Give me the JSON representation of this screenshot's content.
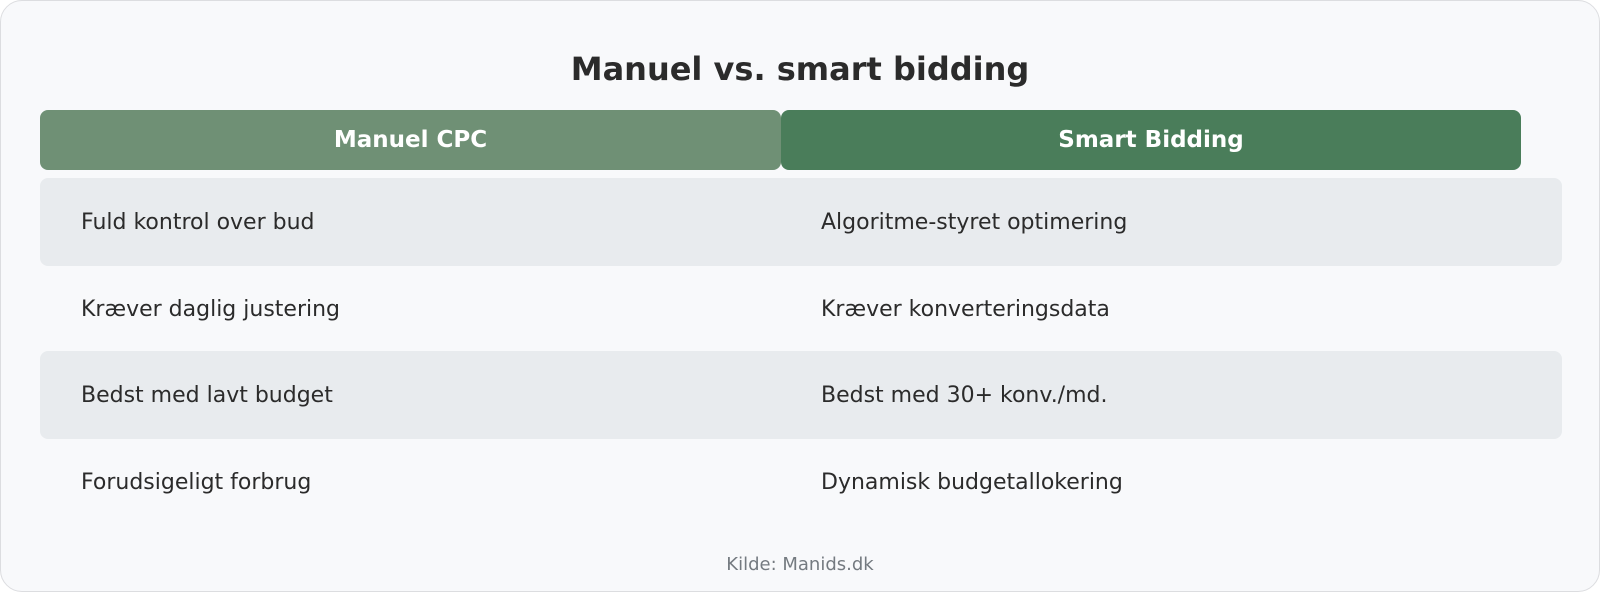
{
  "title": "Manuel vs. smart bidding",
  "columns": {
    "left": "Manuel CPC",
    "right": "Smart Bidding"
  },
  "rows": [
    {
      "left": "Fuld kontrol over bud",
      "right": "Algoritme-styret optimering"
    },
    {
      "left": "Kræver daglig justering",
      "right": "Kræver konverteringsdata"
    },
    {
      "left": "Bedst med lavt budget",
      "right": "Bedst med 30+ konv./md."
    },
    {
      "left": "Forudsigeligt forbrug",
      "right": "Dynamisk budgetallokering"
    }
  ],
  "source": "Kilde: Manids.dk",
  "colors": {
    "left_header": "#6f9075",
    "right_header": "#4a7d5a",
    "row_shade": "#e8ebee",
    "background": "#f8f9fb"
  }
}
